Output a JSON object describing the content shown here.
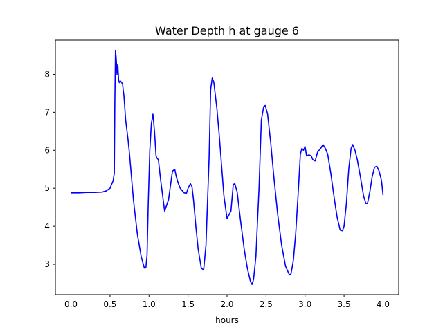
{
  "chart_data": {
    "type": "line",
    "title": "Water Depth h at gauge 6",
    "xlabel": "hours",
    "ylabel": "",
    "xlim": [
      -0.2,
      4.2
    ],
    "ylim": [
      2.2,
      8.9
    ],
    "xticks": [
      0.0,
      0.5,
      1.0,
      1.5,
      2.0,
      2.5,
      3.0,
      3.5,
      4.0
    ],
    "xtick_labels": [
      "0.0",
      "0.5",
      "1.0",
      "1.5",
      "2.0",
      "2.5",
      "3.0",
      "3.5",
      "4.0"
    ],
    "yticks": [
      3,
      4,
      5,
      6,
      7,
      8
    ],
    "ytick_labels": [
      "3",
      "4",
      "5",
      "6",
      "7",
      "8"
    ],
    "grid": false,
    "series": [
      {
        "name": "",
        "color": "#0000ff",
        "x": [
          0.0,
          0.1,
          0.2,
          0.3,
          0.4,
          0.45,
          0.5,
          0.54,
          0.555,
          0.562,
          0.57,
          0.578,
          0.585,
          0.59,
          0.6,
          0.61,
          0.62,
          0.635,
          0.66,
          0.68,
          0.7,
          0.73,
          0.75,
          0.8,
          0.85,
          0.9,
          0.94,
          0.96,
          0.975,
          0.99,
          1.01,
          1.03,
          1.05,
          1.07,
          1.09,
          1.1,
          1.12,
          1.15,
          1.2,
          1.25,
          1.3,
          1.33,
          1.35,
          1.38,
          1.4,
          1.45,
          1.48,
          1.5,
          1.53,
          1.55,
          1.57,
          1.6,
          1.63,
          1.67,
          1.7,
          1.73,
          1.77,
          1.79,
          1.81,
          1.83,
          1.87,
          1.9,
          1.93,
          1.96,
          2.0,
          2.05,
          2.08,
          2.1,
          2.13,
          2.17,
          2.22,
          2.26,
          2.3,
          2.32,
          2.34,
          2.37,
          2.41,
          2.44,
          2.47,
          2.49,
          2.52,
          2.56,
          2.6,
          2.65,
          2.7,
          2.75,
          2.8,
          2.82,
          2.85,
          2.88,
          2.91,
          2.94,
          2.96,
          2.98,
          3.0,
          3.02,
          3.05,
          3.08,
          3.1,
          3.13,
          3.16,
          3.2,
          3.23,
          3.26,
          3.29,
          3.33,
          3.37,
          3.41,
          3.45,
          3.48,
          3.5,
          3.53,
          3.56,
          3.59,
          3.61,
          3.64,
          3.67,
          3.71,
          3.75,
          3.78,
          3.8,
          3.83,
          3.86,
          3.89,
          3.92,
          3.95,
          3.98,
          4.0
        ],
        "y": [
          4.88,
          4.88,
          4.89,
          4.89,
          4.9,
          4.93,
          5.0,
          5.2,
          5.4,
          7.3,
          8.62,
          8.45,
          8.22,
          8.0,
          8.25,
          7.85,
          7.78,
          7.82,
          7.75,
          7.4,
          6.8,
          6.3,
          5.9,
          4.7,
          3.8,
          3.2,
          2.9,
          2.92,
          3.25,
          4.6,
          6.0,
          6.7,
          6.95,
          6.5,
          5.85,
          5.8,
          5.75,
          5.2,
          4.4,
          4.7,
          5.45,
          5.5,
          5.3,
          5.1,
          5.0,
          4.88,
          4.87,
          5.0,
          5.12,
          5.05,
          4.7,
          4.0,
          3.4,
          2.9,
          2.85,
          3.5,
          5.8,
          7.6,
          7.9,
          7.8,
          7.1,
          6.4,
          5.6,
          4.8,
          4.2,
          4.4,
          5.1,
          5.12,
          4.9,
          4.2,
          3.4,
          2.9,
          2.55,
          2.47,
          2.6,
          3.2,
          5.0,
          6.8,
          7.15,
          7.18,
          6.95,
          6.2,
          5.3,
          4.3,
          3.5,
          2.95,
          2.72,
          2.75,
          3.1,
          3.8,
          4.8,
          5.9,
          6.05,
          6.0,
          6.1,
          5.85,
          5.88,
          5.85,
          5.75,
          5.72,
          5.95,
          6.05,
          6.15,
          6.05,
          5.9,
          5.4,
          4.8,
          4.25,
          3.9,
          3.88,
          4.0,
          4.6,
          5.5,
          6.05,
          6.15,
          6.0,
          5.75,
          5.3,
          4.8,
          4.6,
          4.6,
          4.9,
          5.3,
          5.55,
          5.58,
          5.45,
          5.2,
          4.82
        ]
      }
    ]
  }
}
